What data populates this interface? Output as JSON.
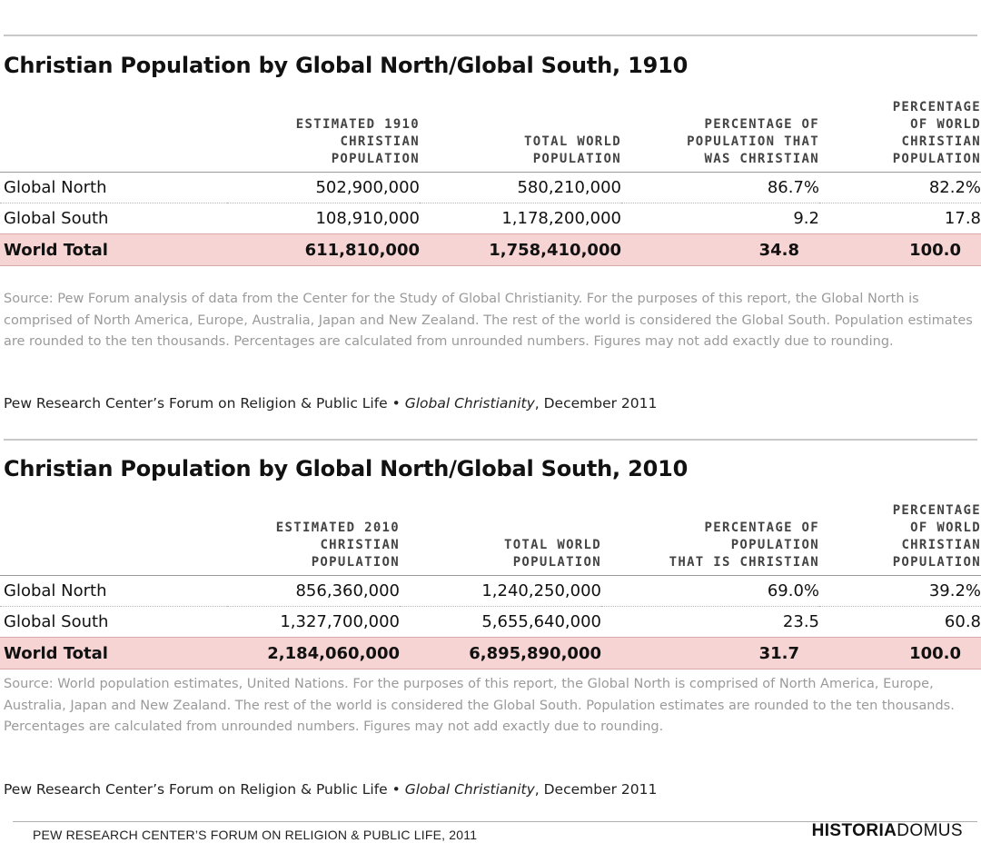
{
  "tables": [
    {
      "title": "Christian Population by Global North/Global South, 1910",
      "headers": [
        "",
        "ESTIMATED 1910\nCHRISTIAN\nPOPULATION",
        "TOTAL WORLD\nPOPULATION",
        "PERCENTAGE OF\nPOPULATION THAT\nWAS CHRISTIAN",
        "PERCENTAGE\nOF WORLD\nCHRISTIAN\nPOPULATION"
      ],
      "rows": [
        [
          "Global North",
          "502,900,000",
          "580,210,000",
          "86.7%",
          "82.2%"
        ],
        [
          "Global South",
          "108,910,000",
          "1,178,200,000",
          "9.2",
          "17.8"
        ]
      ],
      "total": [
        "World Total",
        "611,810,000",
        "1,758,410,000",
        "34.8",
        "100.0"
      ],
      "source": "Source: Pew Forum analysis of data from the Center for the Study of Global Christianity. For the purposes of this report, the Global North is comprised of North America, Europe, Australia, Japan and New Zealand. The rest of the world is considered the Global South. Population estimates are rounded to the ten thousands. Percentages are calculated from unrounded numbers. Figures may not add exactly due to rounding.",
      "credit_prefix": "Pew Research Center’s Forum on Religion & Public Life • ",
      "credit_title": "Global Christianity",
      "credit_suffix": ", December 2011"
    },
    {
      "title": "Christian Population by Global North/Global South, 2010",
      "headers": [
        "",
        "ESTIMATED 2010\nCHRISTIAN\nPOPULATION",
        "TOTAL WORLD\nPOPULATION",
        "PERCENTAGE OF\nPOPULATION\nTHAT IS CHRISTIAN",
        "PERCENTAGE\nOF WORLD\nCHRISTIAN\nPOPULATION"
      ],
      "rows": [
        [
          "Global North",
          "856,360,000",
          "1,240,250,000",
          "69.0%",
          "39.2%"
        ],
        [
          "Global South",
          "1,327,700,000",
          "5,655,640,000",
          "23.5",
          "60.8"
        ]
      ],
      "total": [
        "World Total",
        "2,184,060,000",
        "6,895,890,000",
        "31.7",
        "100.0"
      ],
      "source": "Source: World population estimates, United Nations. For the purposes of this report, the Global North is comprised of North America, Europe, Australia, Japan and New Zealand. The rest of the world is considered the Global South. Population estimates are rounded to the ten thousands. Percentages are calculated from unrounded numbers. Figures may not add exactly due to rounding.",
      "credit_prefix": "Pew Research Center’s Forum on Religion & Public Life • ",
      "credit_title": "Global Christianity",
      "credit_suffix": ", December 2011"
    }
  ],
  "footer": {
    "attribution": "PEW RESEARCH CENTER’S FORUM ON RELIGION & PUBLIC LIFE, 2011",
    "logo_bold": "HISTORIA",
    "logo_light": "DOMUS"
  }
}
